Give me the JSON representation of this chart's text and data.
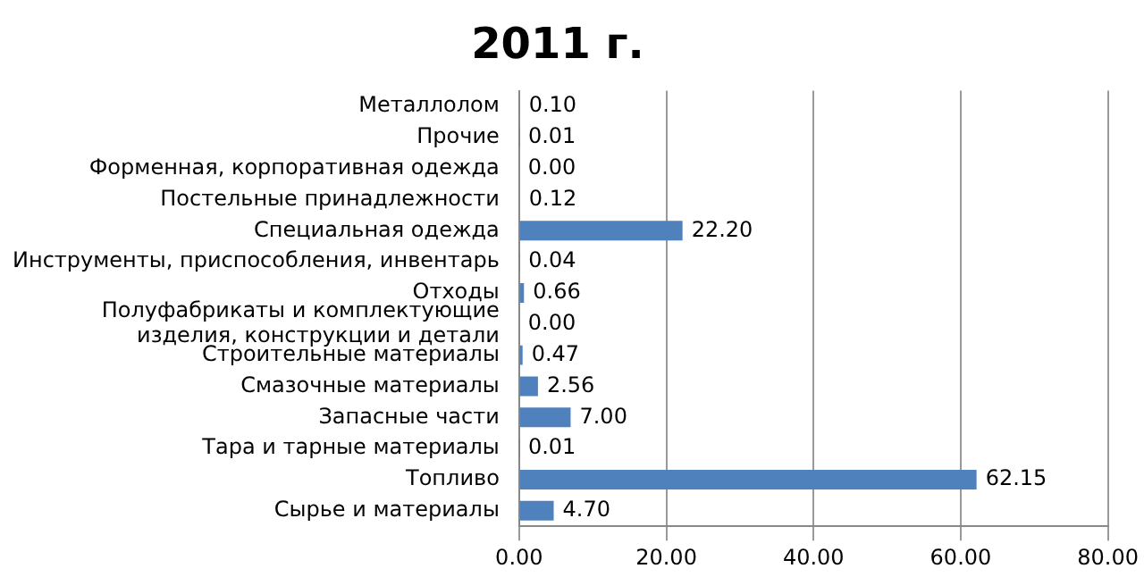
{
  "chart_data": {
    "type": "bar",
    "orientation": "horizontal",
    "title": "2011 г.",
    "categories": [
      "Металлолом",
      "Прочие",
      "Форменная, корпоративная одежда",
      "Постельные принадлежности",
      "Специальная одежда",
      "Инструменты, приспособления, инвентарь",
      "Отходы",
      "Полуфабрикаты и комплектующие изделия, конструкции и детали",
      "Строительные материалы",
      "Смазочные материалы",
      "Запасные части",
      "Тара и тарные материалы",
      "Топливо",
      "Сырье и материалы"
    ],
    "values": [
      0.1,
      0.01,
      0.0,
      0.12,
      22.2,
      0.04,
      0.66,
      0.0,
      0.47,
      2.56,
      7.0,
      0.01,
      62.15,
      4.7
    ],
    "value_labels": [
      "0.10",
      "0.01",
      "0.00",
      "0.12",
      "22.20",
      "0.04",
      "0.66",
      "0.00",
      "0.47",
      "2.56",
      "7.00",
      "0.01",
      "62.15",
      "4.70"
    ],
    "color": "#4f81bd",
    "xlim": [
      0,
      80
    ],
    "xticks": [
      {
        "value": 0,
        "label": "0.00"
      },
      {
        "value": 20,
        "label": "20.00"
      },
      {
        "value": 40,
        "label": "40.00"
      },
      {
        "value": 60,
        "label": "60.00"
      },
      {
        "value": 80,
        "label": "80.00"
      }
    ],
    "grid": "x"
  }
}
